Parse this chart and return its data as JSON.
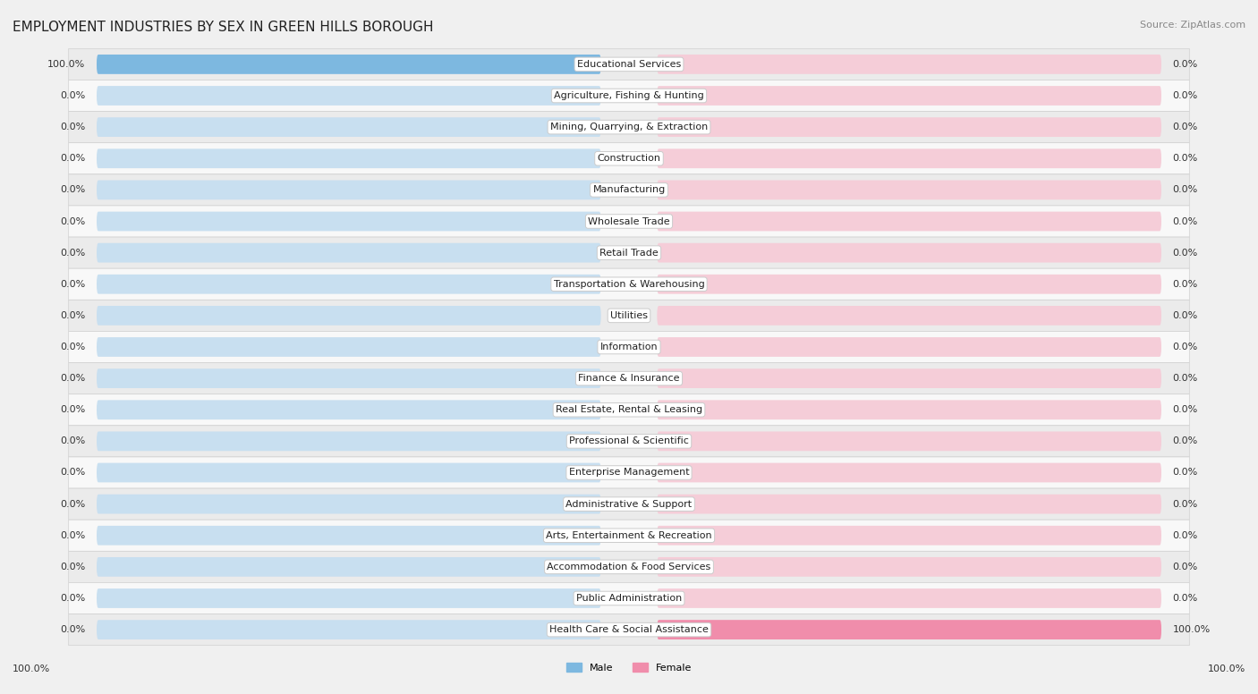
{
  "title": "EMPLOYMENT INDUSTRIES BY SEX IN GREEN HILLS BOROUGH",
  "source": "Source: ZipAtlas.com",
  "industries": [
    "Educational Services",
    "Agriculture, Fishing & Hunting",
    "Mining, Quarrying, & Extraction",
    "Construction",
    "Manufacturing",
    "Wholesale Trade",
    "Retail Trade",
    "Transportation & Warehousing",
    "Utilities",
    "Information",
    "Finance & Insurance",
    "Real Estate, Rental & Leasing",
    "Professional & Scientific",
    "Enterprise Management",
    "Administrative & Support",
    "Arts, Entertainment & Recreation",
    "Accommodation & Food Services",
    "Public Administration",
    "Health Care & Social Assistance"
  ],
  "male_values": [
    100.0,
    0.0,
    0.0,
    0.0,
    0.0,
    0.0,
    0.0,
    0.0,
    0.0,
    0.0,
    0.0,
    0.0,
    0.0,
    0.0,
    0.0,
    0.0,
    0.0,
    0.0,
    0.0
  ],
  "female_values": [
    0.0,
    0.0,
    0.0,
    0.0,
    0.0,
    0.0,
    0.0,
    0.0,
    0.0,
    0.0,
    0.0,
    0.0,
    0.0,
    0.0,
    0.0,
    0.0,
    0.0,
    0.0,
    100.0
  ],
  "male_color": "#7db8e0",
  "female_color": "#f08dab",
  "bar_bg_male_color": "#c8dff0",
  "bar_bg_female_color": "#f5cdd8",
  "row_odd_color": "#ebebeb",
  "row_even_color": "#f8f8f8",
  "fig_bg_color": "#f0f0f0",
  "title_fontsize": 11,
  "label_fontsize": 8,
  "value_fontsize": 8,
  "source_fontsize": 8,
  "legend_male": "Male",
  "legend_female": "Female"
}
